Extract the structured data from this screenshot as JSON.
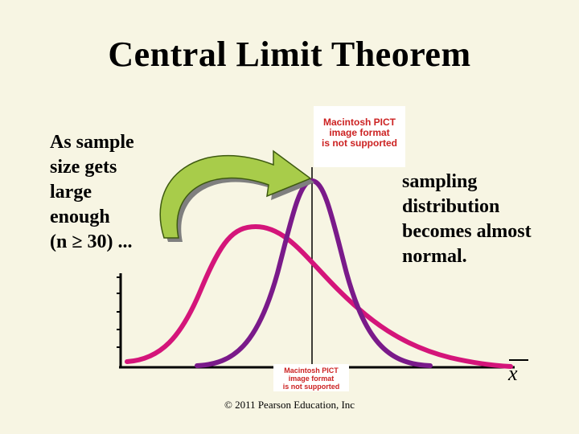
{
  "title": "Central Limit Theorem",
  "left_text": [
    "As sample",
    "size gets",
    "large",
    "enough",
    "(n ≥ 30) ..."
  ],
  "right_text": [
    "sampling",
    "distribution",
    "becomes almost",
    "normal."
  ],
  "pict_top": [
    "Macintosh PICT",
    "image format",
    "is not supported"
  ],
  "pict_bottom": [
    "Macintosh PICT",
    "image format",
    "is not supported"
  ],
  "x_axis_label": "x",
  "footer": "© 2011 Pearson Education, Inc",
  "colors": {
    "background": "#f7f5e3",
    "skewed_curve": "#d4157a",
    "normal_curve": "#7a1a8a",
    "arrow_fill": "#a8cc4a",
    "pict_text": "#cc2222"
  }
}
